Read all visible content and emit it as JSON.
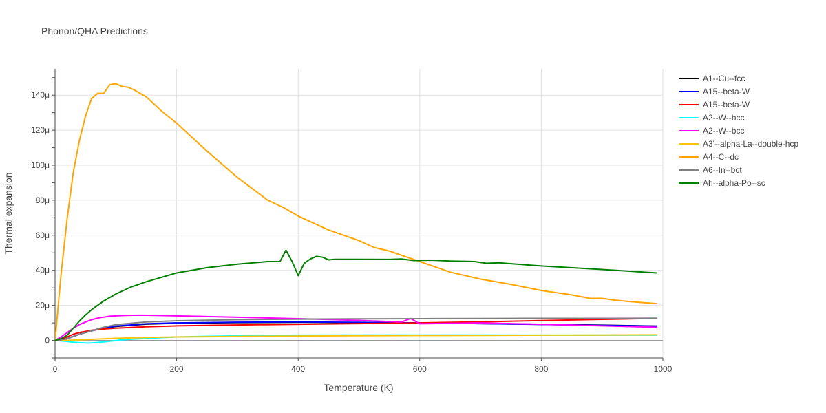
{
  "chart_data": {
    "type": "line",
    "title": "Phonon/QHA Predictions",
    "xlabel": "Temperature (K)",
    "ylabel": "Thermal expansion",
    "xlim": [
      0,
      1000
    ],
    "ylim": [
      -10,
      155
    ],
    "xticks": [
      0,
      200,
      400,
      600,
      800,
      1000
    ],
    "xtick_labels": [
      "0",
      "200",
      "400",
      "600",
      "800",
      "1000"
    ],
    "yticks": [
      0,
      20,
      40,
      60,
      80,
      100,
      120,
      140
    ],
    "ytick_labels": [
      "0",
      "20μ",
      "40μ",
      "60μ",
      "80μ",
      "100μ",
      "120μ",
      "140μ"
    ],
    "grid": true,
    "legend_position": "top-right",
    "series": [
      {
        "name": "A1--Cu--fcc",
        "color": "#000000",
        "x": [
          0,
          10,
          20,
          40,
          60,
          80,
          100,
          150,
          200,
          300,
          400,
          500,
          600,
          700,
          800,
          900,
          990
        ],
        "y": [
          0,
          0.3,
          1,
          3.5,
          5.5,
          7,
          8,
          9.3,
          9.8,
          10.2,
          10.3,
          10.2,
          10,
          9.6,
          9.2,
          8.7,
          8.2
        ]
      },
      {
        "name": "A15--beta-W",
        "color": "#0000ff",
        "x": [
          0,
          10,
          20,
          40,
          60,
          80,
          100,
          150,
          200,
          300,
          400,
          500,
          600,
          700,
          800,
          900,
          990
        ],
        "y": [
          0,
          0.3,
          1,
          3.5,
          5.5,
          7,
          8.2,
          9.5,
          10,
          10.4,
          10.5,
          10.3,
          10,
          9.6,
          9.1,
          8.6,
          8.1
        ]
      },
      {
        "name": "A15--beta-W",
        "color": "#ff0000",
        "x": [
          0,
          10,
          20,
          30,
          40,
          60,
          80,
          100,
          150,
          200,
          300,
          400,
          500,
          600,
          700,
          800,
          900,
          990
        ],
        "y": [
          0,
          0.5,
          2,
          3.5,
          4.5,
          5.8,
          6.5,
          7,
          7.8,
          8.3,
          8.8,
          9.2,
          9.6,
          10,
          10.6,
          11.3,
          12,
          12.6
        ]
      },
      {
        "name": "A2--W--bcc",
        "color": "#00ffff",
        "x": [
          0,
          10,
          20,
          30,
          40,
          55,
          70,
          90,
          110,
          150,
          200,
          300,
          400,
          500,
          600,
          700,
          800,
          900,
          990
        ],
        "y": [
          0,
          -0.3,
          -0.6,
          -1,
          -1.3,
          -1.5,
          -1.2,
          -0.5,
          0.3,
          1.2,
          2,
          2.7,
          3,
          3.1,
          3.1,
          3.1,
          3,
          3,
          3
        ]
      },
      {
        "name": "A2--W--bcc",
        "color": "#ff00ff",
        "x": [
          0,
          10,
          20,
          30,
          40,
          50,
          60,
          70,
          80,
          90,
          100,
          120,
          140,
          160,
          200,
          300,
          400,
          500,
          570,
          585,
          600,
          700,
          800,
          900,
          990
        ],
        "y": [
          0,
          2,
          4.5,
          7,
          9,
          10.5,
          11.8,
          12.7,
          13.3,
          13.8,
          14,
          14.3,
          14.4,
          14.3,
          14,
          13.2,
          12.4,
          11.4,
          10.5,
          12.5,
          9.5,
          10,
          9.2,
          8.3,
          7.5
        ]
      },
      {
        "name": "A3'--alpha-La--double-hcp",
        "color": "#fcc30b",
        "x": [
          0,
          20,
          40,
          60,
          80,
          100,
          150,
          200,
          300,
          400,
          500,
          600,
          700,
          800,
          900,
          990
        ],
        "y": [
          0,
          0,
          0.3,
          0.6,
          0.9,
          1.2,
          1.7,
          2,
          2.3,
          2.5,
          2.7,
          2.8,
          2.9,
          3,
          3.1,
          3.2
        ]
      },
      {
        "name": "A4--C--dc",
        "color": "#ffa500",
        "x": [
          0,
          10,
          20,
          30,
          40,
          50,
          60,
          70,
          80,
          90,
          100,
          110,
          120,
          130,
          150,
          175,
          200,
          250,
          300,
          350,
          375,
          400,
          425,
          450,
          500,
          525,
          550,
          600,
          650,
          700,
          750,
          800,
          850,
          880,
          900,
          920,
          950,
          990
        ],
        "y": [
          0,
          38,
          70,
          96,
          114,
          128,
          138,
          141,
          141,
          146,
          146.5,
          145,
          144.5,
          143,
          139,
          131,
          124,
          108,
          93,
          80,
          76,
          71,
          67,
          63,
          57,
          53,
          51,
          45,
          39,
          35,
          32,
          28.5,
          26,
          24,
          24,
          23,
          22,
          21
        ]
      },
      {
        "name": "A6--In--bct",
        "color": "#808080",
        "x": [
          0,
          10,
          20,
          40,
          60,
          80,
          100,
          150,
          200,
          300,
          400,
          500,
          600,
          700,
          800,
          900,
          990
        ],
        "y": [
          0,
          0.3,
          1,
          3.5,
          5.5,
          7.5,
          9,
          10.5,
          11.2,
          11.8,
          12.1,
          12.3,
          12.4,
          12.5,
          12.6,
          12.6,
          12.7
        ]
      },
      {
        "name": "Ah--alpha-Po--sc",
        "color": "#008000",
        "x": [
          0,
          10,
          20,
          30,
          40,
          50,
          60,
          70,
          80,
          90,
          100,
          125,
          150,
          175,
          200,
          250,
          300,
          350,
          370,
          380,
          390,
          400,
          410,
          420,
          430,
          440,
          450,
          460,
          500,
          550,
          570,
          590,
          620,
          650,
          690,
          710,
          730,
          750,
          800,
          900,
          990
        ],
        "y": [
          0,
          1,
          3,
          7,
          11,
          14.5,
          17.5,
          20,
          22.5,
          24.5,
          26.5,
          30.5,
          33.5,
          36,
          38.5,
          41.5,
          43.5,
          45,
          45,
          51.5,
          45,
          37,
          44,
          46.5,
          48,
          47.5,
          46,
          46.3,
          46.3,
          46.2,
          46.5,
          45.6,
          45.8,
          45.3,
          45,
          44,
          44.3,
          43.8,
          42.5,
          40.5,
          38.5
        ]
      }
    ]
  }
}
